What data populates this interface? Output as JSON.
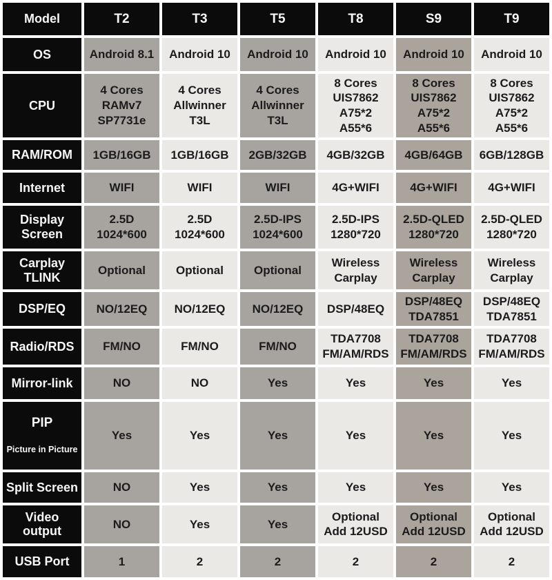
{
  "colors": {
    "header_cell_black": "#0b0b0b",
    "column_gray": "#a7a4a0",
    "column_gray_dark": "#aba49d",
    "column_light": "#ebe9e6",
    "grid_white": "#ffffff",
    "text_dark": "#1b1b1b",
    "text_white": "#f6f6f6"
  },
  "chart_data": {
    "type": "table",
    "columns": [
      "Model",
      "T2",
      "T3",
      "T5",
      "T8",
      "S9",
      "T9"
    ],
    "rows": [
      {
        "label": "OS",
        "values": [
          "Android 8.1",
          "Android 10",
          "Android 10",
          "Android 10",
          "Android 10",
          "Android 10"
        ]
      },
      {
        "label": "CPU",
        "values": [
          "4 Cores\nRAMv7\nSP7731e",
          "4 Cores\nAllwinner\nT3L",
          "4 Cores\nAllwinner\nT3L",
          "8 Cores\nUIS7862\nA75*2\nA55*6",
          "8 Cores\nUIS7862\nA75*2\nA55*6",
          "8 Cores\nUIS7862\nA75*2\nA55*6"
        ]
      },
      {
        "label": "RAM/ROM",
        "values": [
          "1GB/16GB",
          "1GB/16GB",
          "2GB/32GB",
          "4GB/32GB",
          "4GB/64GB",
          "6GB/128GB"
        ]
      },
      {
        "label": "Internet",
        "values": [
          "WIFI",
          "WIFI",
          "WIFI",
          "4G+WIFI",
          "4G+WIFI",
          "4G+WIFI"
        ]
      },
      {
        "label": "Display\nScreen",
        "values": [
          "2.5D\n1024*600",
          "2.5D\n1024*600",
          "2.5D-IPS\n1024*600",
          "2.5D-IPS\n1280*720",
          "2.5D-QLED\n1280*720",
          "2.5D-QLED\n1280*720"
        ]
      },
      {
        "label": "Carplay\nTLINK",
        "values": [
          "Optional",
          "Optional",
          "Optional",
          "Wireless\nCarplay",
          "Wireless\nCarplay",
          "Wireless\nCarplay"
        ]
      },
      {
        "label": "DSP/EQ",
        "values": [
          "NO/12EQ",
          "NO/12EQ",
          "NO/12EQ",
          "DSP/48EQ",
          "DSP/48EQ\nTDA7851",
          "DSP/48EQ\nTDA7851"
        ]
      },
      {
        "label": "Radio/RDS",
        "values": [
          "FM/NO",
          "FM/NO",
          "FM/NO",
          "TDA7708\nFM/AM/RDS",
          "TDA7708\nFM/AM/RDS",
          "TDA7708\nFM/AM/RDS"
        ]
      },
      {
        "label": "Mirror-link",
        "values": [
          "NO",
          "NO",
          "Yes",
          "Yes",
          "Yes",
          "Yes"
        ]
      },
      {
        "label": "PIP",
        "sublabel": "Picture in Picture",
        "values": [
          "Yes",
          "Yes",
          "Yes",
          "Yes",
          "Yes",
          "Yes"
        ]
      },
      {
        "label": "Split Screen",
        "values": [
          "NO",
          "Yes",
          "Yes",
          "Yes",
          "Yes",
          "Yes"
        ]
      },
      {
        "label": "Video\noutput",
        "values": [
          "NO",
          "Yes",
          "Yes",
          "Optional\nAdd 12USD",
          "Optional\nAdd 12USD",
          "Optional\nAdd 12USD"
        ]
      },
      {
        "label": "USB Port",
        "values": [
          "1",
          "2",
          "2",
          "2",
          "2",
          "2"
        ]
      }
    ]
  }
}
